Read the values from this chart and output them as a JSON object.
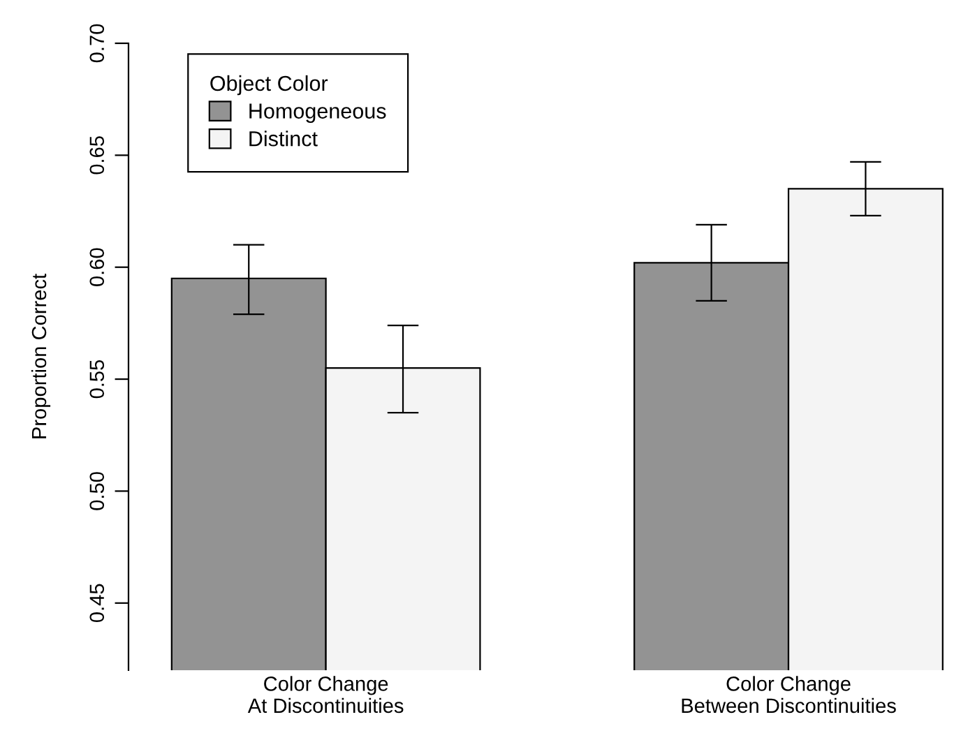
{
  "chart_data": {
    "type": "bar",
    "ylabel": "Proportion Correct",
    "legend_title": "Object Color",
    "legend": "top left",
    "categories": [
      "Color Change\nAt Discontinuities",
      "Color Change\nBetween Discontinuities"
    ],
    "series": [
      {
        "name": "Homogeneous",
        "color": "#939393",
        "values": [
          0.595,
          0.602
        ],
        "errors": [
          [
            0.579,
            0.61
          ],
          [
            0.585,
            0.619
          ]
        ]
      },
      {
        "name": "Distinct",
        "color": "#f4f4f4",
        "values": [
          0.555,
          0.635
        ],
        "errors": [
          [
            0.535,
            0.574
          ],
          [
            0.623,
            0.647
          ]
        ]
      }
    ],
    "ylim": [
      0.42,
      0.7
    ],
    "yticks": [
      {
        "value": 0.45,
        "label": "0.45"
      },
      {
        "value": 0.5,
        "label": "0.50"
      },
      {
        "value": 0.55,
        "label": "0.55"
      },
      {
        "value": 0.6,
        "label": "0.60"
      },
      {
        "value": 0.65,
        "label": "0.65"
      },
      {
        "value": 0.7,
        "label": "0.70"
      }
    ],
    "grid": false
  }
}
